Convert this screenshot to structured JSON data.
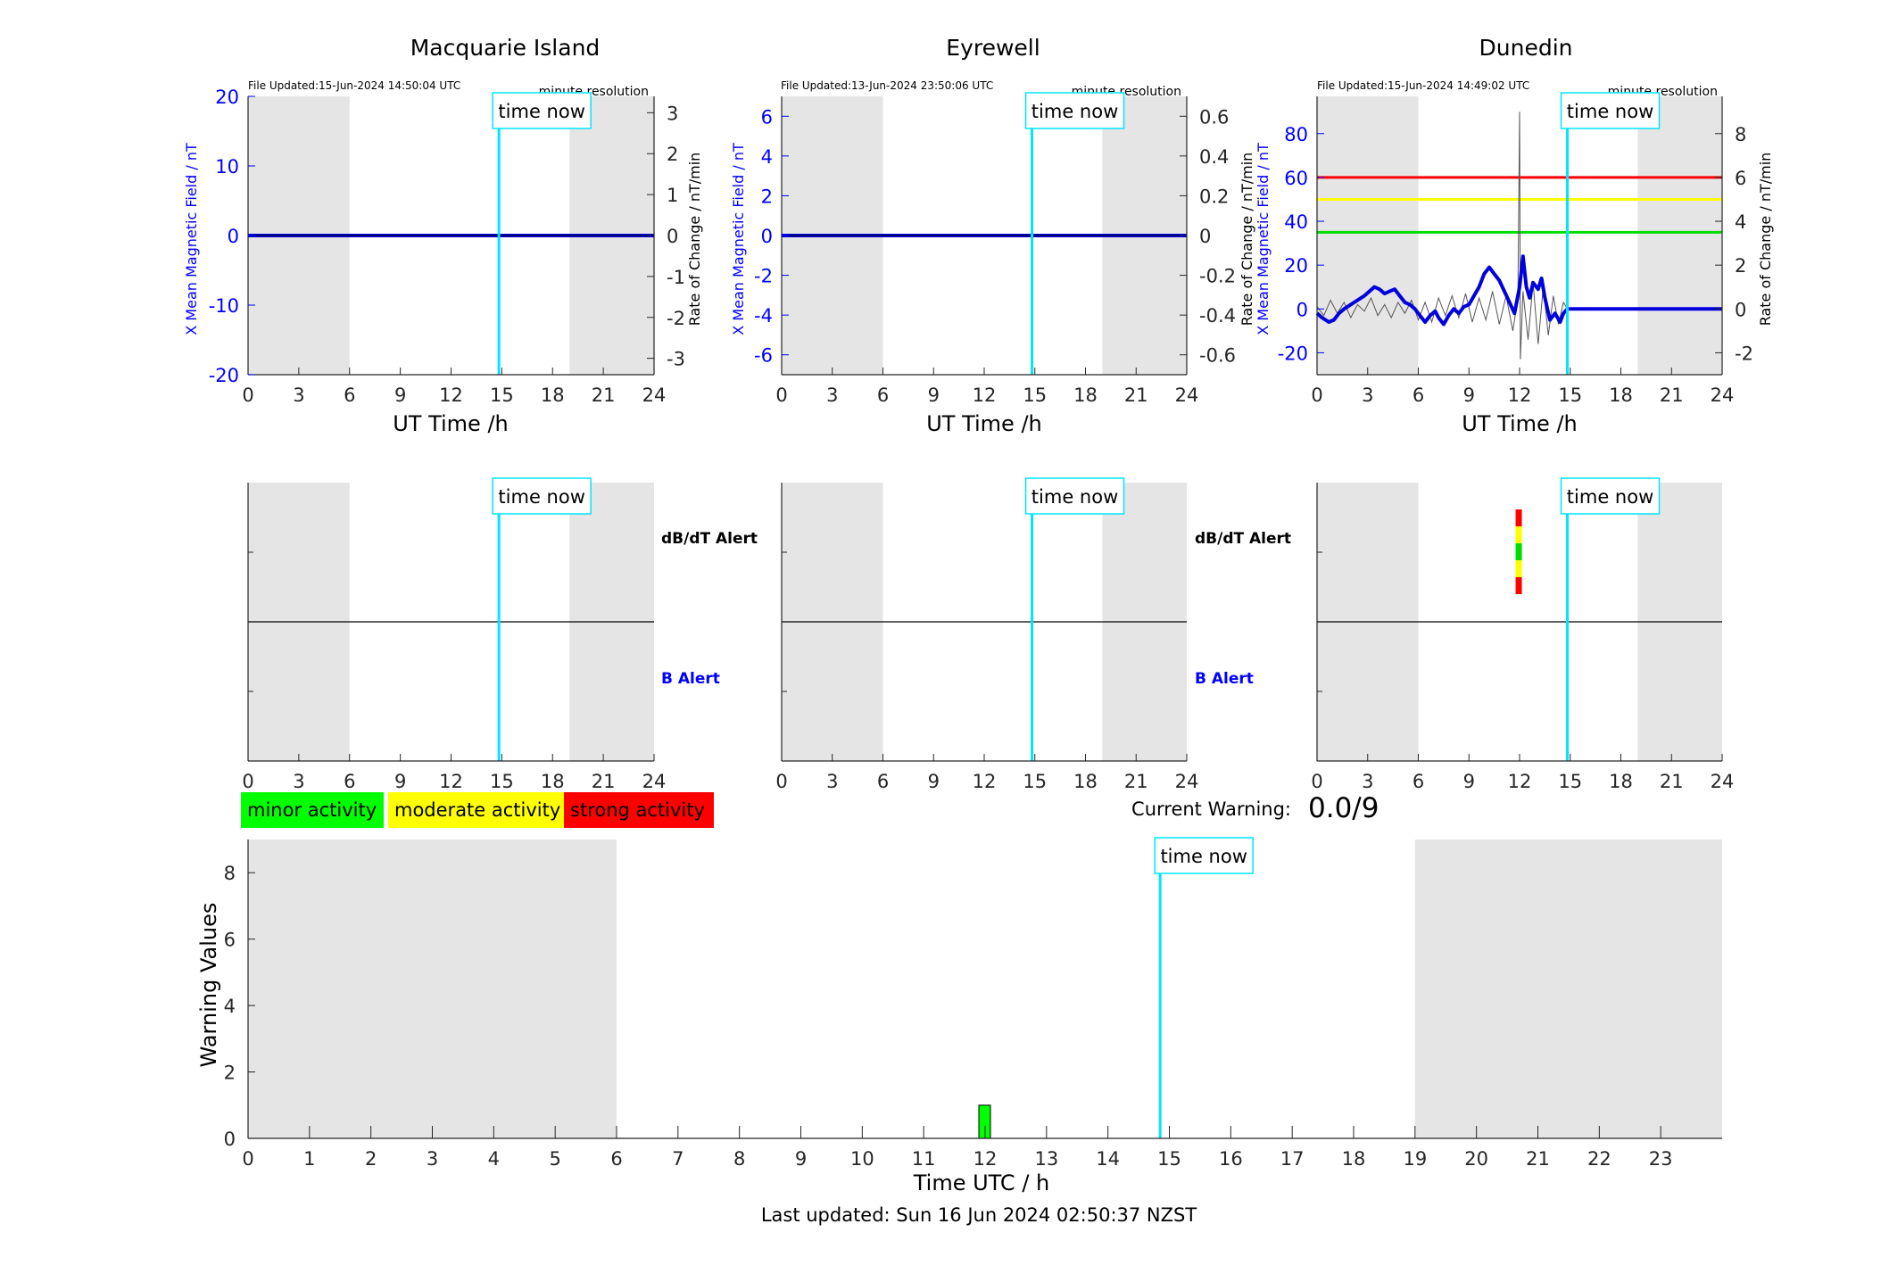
{
  "time_now_label": "time now",
  "chart_data": [
    {
      "type": "line",
      "panel": "top-left",
      "title": "Macquarie Island",
      "file_updated": "File Updated:15-Jun-2024 14:50:04 UTC",
      "resolution": "minute resolution",
      "xlabel": "UT Time /h",
      "ylabel_left": "X Mean Magnetic Field / nT",
      "ylabel_right": "Rate of Change / nT/min",
      "xlim": [
        0,
        24
      ],
      "ylim_left": [
        -20,
        20
      ],
      "ylim_right": [
        -3.4,
        3.4
      ],
      "x_ticks": [
        "0",
        "3",
        "6",
        "9",
        "12",
        "15",
        "18",
        "21",
        "24"
      ],
      "y_ticks_left": [
        "-20",
        "-10",
        "0",
        "10",
        "20"
      ],
      "y_ticks_right": [
        "-3",
        "-2",
        "-1",
        "0",
        "1",
        "2",
        "3"
      ],
      "night_shading": [
        [
          0,
          6
        ],
        [
          19,
          24
        ]
      ],
      "time_now": 14.83,
      "series": [
        {
          "values": [
            [
              0,
              0
            ],
            [
              24,
              0
            ]
          ]
        }
      ],
      "grid": false
    },
    {
      "type": "line",
      "panel": "top-middle",
      "title": "Eyrewell",
      "file_updated": "File Updated:13-Jun-2024 23:50:06 UTC",
      "resolution": "minute resolution",
      "xlabel": "UT Time /h",
      "ylabel_left": "X Mean Magnetic Field / nT",
      "ylabel_right": "",
      "xlim": [
        0,
        24
      ],
      "ylim_left": [
        -7,
        7
      ],
      "ylim_right": [
        -0.7,
        0.7
      ],
      "x_ticks": [
        "0",
        "3",
        "6",
        "9",
        "12",
        "15",
        "18",
        "21",
        "24"
      ],
      "y_ticks_left": [
        "-6",
        "-4",
        "-2",
        "0",
        "2",
        "4",
        "6"
      ],
      "y_ticks_right": [
        "-0.6",
        "-0.4",
        "-0.2",
        "0",
        "0.2",
        "0.4",
        "0.6"
      ],
      "night_shading": [
        [
          0,
          6
        ],
        [
          19,
          24
        ]
      ],
      "time_now": 14.83,
      "series": [
        {
          "values": [
            [
              0,
              0
            ],
            [
              24,
              0
            ]
          ]
        }
      ],
      "grid": false
    },
    {
      "type": "line",
      "panel": "top-right",
      "title": "Dunedin",
      "file_updated": "File Updated:15-Jun-2024 14:49:02 UTC",
      "resolution": "minute resolution",
      "xlabel": "UT Time /h",
      "ylabel_left": "X Mean Magnetic Field / nT",
      "ylabel_left_extra": "Rate of Change / nT/min",
      "ylabel_right": "Rate of Change / nT/min",
      "xlim": [
        0,
        24
      ],
      "ylim_left": [
        -30,
        97
      ],
      "ylim_right": [
        -3,
        9.7
      ],
      "x_ticks": [
        "0",
        "3",
        "6",
        "9",
        "12",
        "15",
        "18",
        "21",
        "24"
      ],
      "y_ticks_left": [
        "-20",
        "0",
        "20",
        "40",
        "60",
        "80"
      ],
      "y_ticks_right": [
        "-2",
        "0",
        "2",
        "4",
        "6",
        "8"
      ],
      "night_shading": [
        [
          0,
          6
        ],
        [
          19,
          24
        ]
      ],
      "time_now": 14.83,
      "thresholds": [
        {
          "level": 60,
          "color": "#ff0000"
        },
        {
          "level": 50,
          "color": "#ffff00"
        },
        {
          "level": 35,
          "color": "#00dd00"
        }
      ],
      "series": [
        {
          "values": [
            [
              0,
              -2
            ],
            [
              0.3,
              -4
            ],
            [
              0.7,
              -6
            ],
            [
              1.0,
              -5
            ],
            [
              1.3,
              -2
            ],
            [
              1.6,
              0
            ],
            [
              2.0,
              2
            ],
            [
              2.4,
              4
            ],
            [
              2.8,
              6
            ],
            [
              3.1,
              8
            ],
            [
              3.4,
              10
            ],
            [
              3.7,
              9
            ],
            [
              4.0,
              7
            ],
            [
              4.3,
              8
            ],
            [
              4.6,
              9
            ],
            [
              4.9,
              6
            ],
            [
              5.2,
              3
            ],
            [
              5.5,
              2
            ],
            [
              5.8,
              0
            ],
            [
              6.1,
              -3
            ],
            [
              6.4,
              -6
            ],
            [
              6.7,
              -3
            ],
            [
              7.0,
              -1
            ],
            [
              7.2,
              -4
            ],
            [
              7.5,
              -7
            ],
            [
              7.8,
              -3
            ],
            [
              8.1,
              0
            ],
            [
              8.4,
              -2
            ],
            [
              8.7,
              1
            ],
            [
              9.0,
              2
            ],
            [
              9.3,
              6
            ],
            [
              9.6,
              10
            ],
            [
              9.9,
              16
            ],
            [
              10.2,
              19
            ],
            [
              10.5,
              16
            ],
            [
              10.8,
              13
            ],
            [
              11.1,
              8
            ],
            [
              11.4,
              3
            ],
            [
              11.7,
              -2
            ],
            [
              12.0,
              10
            ],
            [
              12.2,
              24
            ],
            [
              12.4,
              10
            ],
            [
              12.6,
              5
            ],
            [
              12.8,
              12
            ],
            [
              13.1,
              9
            ],
            [
              13.3,
              14
            ],
            [
              13.5,
              5
            ],
            [
              13.8,
              -5
            ],
            [
              14.1,
              -2
            ],
            [
              14.4,
              -6
            ],
            [
              14.6,
              -2
            ],
            [
              14.83,
              0
            ],
            [
              15.0,
              0
            ],
            [
              24,
              0
            ]
          ]
        },
        {
          "values": [
            [
              0,
              0.1
            ],
            [
              0.4,
              -0.3
            ],
            [
              0.8,
              0.4
            ],
            [
              1.2,
              -0.2
            ],
            [
              1.6,
              0.3
            ],
            [
              2.0,
              -0.4
            ],
            [
              2.4,
              0.2
            ],
            [
              2.8,
              -0.1
            ],
            [
              3.2,
              0.5
            ],
            [
              3.6,
              -0.3
            ],
            [
              4.0,
              0.2
            ],
            [
              4.4,
              -0.4
            ],
            [
              4.8,
              0.3
            ],
            [
              5.2,
              -0.2
            ],
            [
              5.6,
              0.4
            ],
            [
              6.0,
              -0.5
            ],
            [
              6.4,
              0.3
            ],
            [
              6.8,
              -0.6
            ],
            [
              7.2,
              0.5
            ],
            [
              7.6,
              -0.3
            ],
            [
              8.0,
              0.6
            ],
            [
              8.4,
              -0.4
            ],
            [
              8.8,
              0.7
            ],
            [
              9.2,
              -0.6
            ],
            [
              9.6,
              0.5
            ],
            [
              10.0,
              -0.5
            ],
            [
              10.4,
              0.8
            ],
            [
              10.8,
              -0.7
            ],
            [
              11.2,
              0.6
            ],
            [
              11.6,
              -1.0
            ],
            [
              11.9,
              0.5
            ],
            [
              12.0,
              9.0
            ],
            [
              12.05,
              -2.3
            ],
            [
              12.2,
              0.8
            ],
            [
              12.5,
              -1.4
            ],
            [
              12.8,
              1.2
            ],
            [
              13.1,
              -1.6
            ],
            [
              13.4,
              1.0
            ],
            [
              13.7,
              -1.2
            ],
            [
              14.0,
              0.6
            ],
            [
              14.3,
              -0.7
            ],
            [
              14.6,
              0.3
            ],
            [
              14.83,
              0.0
            ]
          ]
        }
      ],
      "grid": false
    },
    {
      "type": "bar",
      "panel": "middle-left",
      "alert_labels": {
        "top": "dB/dT Alert",
        "bottom": "B Alert"
      },
      "xlim": [
        0,
        24
      ],
      "x_ticks": [
        "0",
        "3",
        "6",
        "9",
        "12",
        "15",
        "18",
        "21",
        "24"
      ],
      "night_shading": [
        [
          0,
          6
        ],
        [
          19,
          24
        ]
      ],
      "time_now": 14.83,
      "alerts": []
    },
    {
      "type": "bar",
      "panel": "middle-middle",
      "alert_labels": {
        "top": "dB/dT Alert",
        "bottom": "B Alert"
      },
      "xlim": [
        0,
        24
      ],
      "x_ticks": [
        "0",
        "3",
        "6",
        "9",
        "12",
        "15",
        "18",
        "21",
        "24"
      ],
      "night_shading": [
        [
          0,
          6
        ],
        [
          19,
          24
        ]
      ],
      "time_now": 14.83,
      "alerts": []
    },
    {
      "type": "bar",
      "panel": "middle-right",
      "xlim": [
        0,
        24
      ],
      "x_ticks": [
        "0",
        "3",
        "6",
        "9",
        "12",
        "15",
        "18",
        "21",
        "24"
      ],
      "night_shading": [
        [
          0,
          6
        ],
        [
          19,
          24
        ]
      ],
      "time_now": 14.83,
      "alerts": [
        {
          "x": 11.95,
          "colors": [
            "#ff0000",
            "#ffff00",
            "#00dd00",
            "#ffff00",
            "#ff0000"
          ]
        }
      ]
    },
    {
      "type": "bar",
      "panel": "bottom",
      "xlabel": "Time UTC / h",
      "ylabel": "Warning Values",
      "xlim": [
        0,
        24
      ],
      "ylim": [
        0,
        9
      ],
      "x_ticks": [
        "0",
        "1",
        "2",
        "3",
        "4",
        "5",
        "6",
        "7",
        "8",
        "9",
        "10",
        "11",
        "12",
        "13",
        "14",
        "15",
        "16",
        "17",
        "18",
        "19",
        "20",
        "21",
        "22",
        "23"
      ],
      "y_ticks": [
        "0",
        "2",
        "4",
        "6",
        "8"
      ],
      "night_shading": [
        [
          0,
          6
        ],
        [
          19,
          24
        ]
      ],
      "time_now": 14.85,
      "bars": [
        {
          "x": 12,
          "value": 1,
          "color": "#00ff00"
        }
      ],
      "legend": [
        {
          "label": "minor activity",
          "color": "#00ff00"
        },
        {
          "label": "moderate activity",
          "color": "#ffff00"
        },
        {
          "label": "strong activity",
          "color": "#ff0000"
        }
      ],
      "current_warning_label": "Current Warning:",
      "current_warning_value": "0.0/9"
    }
  ],
  "footer": {
    "last_updated": "Last updated: Sun 16 Jun 2024 02:50:37 NZST"
  }
}
